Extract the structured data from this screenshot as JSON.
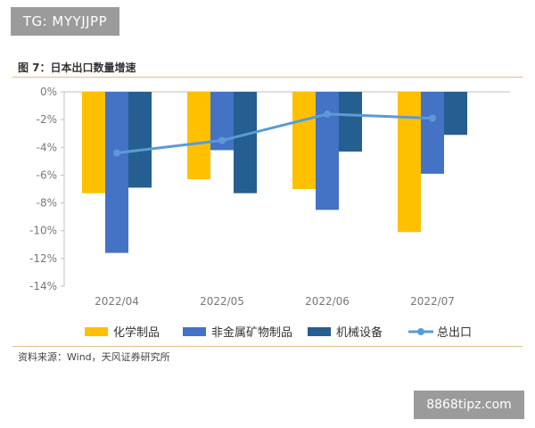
{
  "watermark_top": "TG: MYYJJPP",
  "figure_title": "图 7：日本出口数量增速",
  "source": "资料来源：Wind，天风证券研究所",
  "watermark_bottom": "8868tipz.com",
  "colors": {
    "chemicals": "#ffc000",
    "minerals": "#4472c4",
    "machinery": "#255e91",
    "total": "#5b9bd5"
  },
  "chart_data": {
    "type": "bar",
    "categories": [
      "2022/04",
      "2022/05",
      "2022/06",
      "2022/07"
    ],
    "series": [
      {
        "name": "化学制品",
        "type": "bar",
        "color": "#ffc000",
        "values": [
          -7.3,
          -6.3,
          -7.0,
          -10.1
        ]
      },
      {
        "name": "非金属矿物制品",
        "type": "bar",
        "color": "#4472c4",
        "values": [
          -11.6,
          -4.2,
          -8.5,
          -5.9
        ]
      },
      {
        "name": "机械设备",
        "type": "bar",
        "color": "#255e91",
        "values": [
          -6.9,
          -7.3,
          -4.3,
          -3.1
        ]
      },
      {
        "name": "总出口",
        "type": "line",
        "color": "#5b9bd5",
        "values": [
          -4.4,
          -3.5,
          -1.6,
          -1.9
        ]
      }
    ],
    "ylim": [
      -14,
      0
    ],
    "yticks": [
      0,
      -2,
      -4,
      -6,
      -8,
      -10,
      -12,
      -14
    ],
    "ytick_suffix": "%",
    "legend_position": "bottom",
    "grid": false
  }
}
